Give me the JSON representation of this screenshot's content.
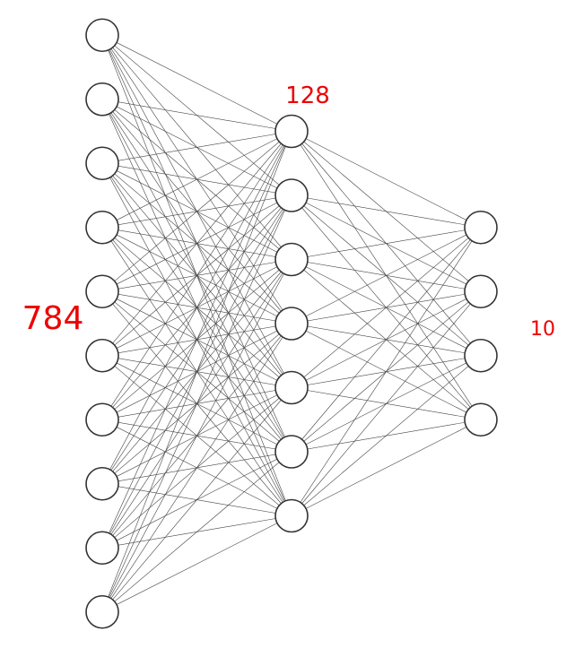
{
  "layers": [
    {
      "label": "784",
      "neuron_count": 10
    },
    {
      "label": "128",
      "neuron_count": 7
    },
    {
      "label": "10",
      "neuron_count": 4
    }
  ],
  "colors": {
    "label": "#ee0000",
    "neuron_stroke": "#333333",
    "edge": "#444444",
    "background": "#ffffff"
  }
}
